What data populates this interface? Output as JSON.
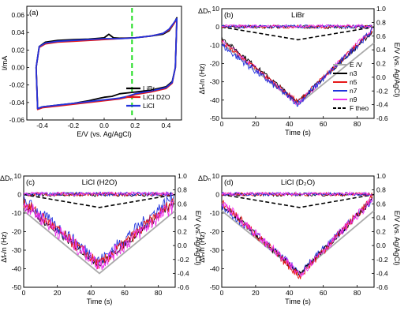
{
  "chart_data": [
    {
      "type": "line",
      "panel_label": "(a)",
      "title": "",
      "xlabel": "E/V (vs. Ag/AgCl)",
      "ylabel": "I/mA",
      "xlim": [
        -0.5,
        0.5
      ],
      "ylim": [
        -0.06,
        0.07
      ],
      "xticks": [
        "-0.4",
        "-0.2",
        "0.0",
        "0.2",
        "0.4"
      ],
      "yticks": [
        "-0.06",
        "-0.04",
        "-0.02",
        "0.00",
        "0.02",
        "0.04",
        "0.06"
      ],
      "vline": {
        "x": 0.18,
        "color": "#22dd22"
      },
      "legend_position": "bottom-right",
      "series": [
        {
          "name": "LiBr",
          "color": "#000000",
          "upper": {
            "x": [
              -0.44,
              -0.42,
              -0.38,
              -0.3,
              -0.2,
              -0.1,
              0.0,
              0.03,
              0.06,
              0.1,
              0.2,
              0.3,
              0.38,
              0.42,
              0.45,
              0.47
            ],
            "y": [
              0.0,
              0.024,
              0.029,
              0.031,
              0.032,
              0.0325,
              0.034,
              0.038,
              0.034,
              0.0335,
              0.034,
              0.036,
              0.038,
              0.042,
              0.05,
              0.057
            ]
          },
          "lower": {
            "x": [
              0.47,
              0.46,
              0.44,
              0.4,
              0.3,
              0.2,
              0.1,
              0.05,
              0.0,
              -0.1,
              -0.2,
              -0.3,
              -0.4,
              -0.43,
              -0.44
            ],
            "y": [
              0.057,
              0.0,
              -0.016,
              -0.022,
              -0.026,
              -0.028,
              -0.03,
              -0.033,
              -0.034,
              -0.038,
              -0.041,
              -0.043,
              -0.045,
              -0.047,
              0.0
            ]
          }
        },
        {
          "name": "LiCl D2O",
          "color": "#e61919",
          "upper": {
            "x": [
              -0.44,
              -0.42,
              -0.38,
              -0.3,
              -0.2,
              -0.1,
              0.0,
              0.1,
              0.2,
              0.3,
              0.38,
              0.42,
              0.45,
              0.47
            ],
            "y": [
              0.0,
              0.023,
              0.027,
              0.029,
              0.03,
              0.031,
              0.032,
              0.033,
              0.034,
              0.036,
              0.039,
              0.043,
              0.05,
              0.055
            ]
          },
          "lower": {
            "x": [
              0.47,
              0.46,
              0.44,
              0.4,
              0.3,
              0.2,
              0.15,
              0.1,
              0.0,
              -0.1,
              -0.2,
              -0.3,
              -0.4,
              -0.43,
              -0.44
            ],
            "y": [
              0.055,
              0.0,
              -0.018,
              -0.024,
              -0.028,
              -0.031,
              -0.034,
              -0.036,
              -0.038,
              -0.04,
              -0.042,
              -0.044,
              -0.046,
              -0.048,
              0.0
            ]
          }
        },
        {
          "name": "LiCl",
          "color": "#2233dd",
          "upper": {
            "x": [
              -0.44,
              -0.42,
              -0.38,
              -0.3,
              -0.2,
              -0.1,
              0.0,
              0.1,
              0.2,
              0.3,
              0.38,
              0.42,
              0.45,
              0.47
            ],
            "y": [
              0.0,
              0.024,
              0.028,
              0.03,
              0.031,
              0.032,
              0.033,
              0.033,
              0.034,
              0.036,
              0.039,
              0.044,
              0.051,
              0.056
            ]
          },
          "lower": {
            "x": [
              0.47,
              0.46,
              0.44,
              0.4,
              0.3,
              0.2,
              0.15,
              0.1,
              0.0,
              -0.1,
              -0.2,
              -0.3,
              -0.4,
              -0.43,
              -0.44
            ],
            "y": [
              0.056,
              0.0,
              -0.017,
              -0.023,
              -0.027,
              -0.03,
              -0.033,
              -0.035,
              -0.037,
              -0.039,
              -0.041,
              -0.043,
              -0.045,
              -0.047,
              0.0
            ]
          }
        }
      ]
    },
    {
      "type": "line",
      "panel_label": "(b)",
      "title": "LiBr",
      "xlabel": "Time (s)",
      "ylabel": "Δfₙ/n (Hz)",
      "ylabel_top": "ΔDₙ",
      "ylabel_right": "E/V (vs. Ag/AgCl)",
      "xlim": [
        0,
        90
      ],
      "ylim": [
        -50,
        10
      ],
      "y2lim": [
        -0.6,
        1.0
      ],
      "xticks": [
        "0",
        "20",
        "40",
        "60",
        "80"
      ],
      "yticks": [
        "-50",
        "-40",
        "-30",
        "-20",
        "-10",
        "0",
        "10"
      ],
      "y2ticks": [
        "-0.6",
        "-0.4",
        "-0.2",
        "0.0",
        "0.2",
        "0.4",
        "0.6",
        "0.8",
        "1.0"
      ],
      "legend_position": "bottom-right",
      "legend": [
        {
          "name": "E /V",
          "color": "#aaaaaa"
        },
        {
          "name": "n3",
          "color": "#000000"
        },
        {
          "name": "n5",
          "color": "#e61919"
        },
        {
          "name": "n7",
          "color": "#2233dd"
        },
        {
          "name": "n9",
          "color": "#ee33ee"
        },
        {
          "name": "F theo",
          "color": "#000000"
        }
      ],
      "min_time": 45,
      "min_freq": -42,
      "minima": {
        "n3": -41,
        "n5": -41,
        "n7": -42,
        "n9": -42
      }
    },
    {
      "type": "line",
      "panel_label": "(c)",
      "title": "LiCl (H2O)",
      "xlabel": "Time (s)",
      "ylabel": "Δfₙ/n (Hz)",
      "ylabel_top": "ΔDₙ",
      "ylabel_right": "E/V (vs. Ag/AgCl)",
      "xlim": [
        0,
        90
      ],
      "ylim": [
        -50,
        10
      ],
      "y2lim": [
        -0.6,
        1.0
      ],
      "xticks": [
        "0",
        "20",
        "40",
        "60",
        "80"
      ],
      "yticks": [
        "-50",
        "-40",
        "-30",
        "-20",
        "-10",
        "0",
        "10"
      ],
      "y2ticks": [
        "-0.6",
        "-0.4",
        "-0.2",
        "0.0",
        "0.2",
        "0.4",
        "0.6",
        "0.8",
        "1.0"
      ],
      "min_time": 45,
      "minima": {
        "n3": -38,
        "n5": -38,
        "n7": -36,
        "n9": -38
      }
    },
    {
      "type": "line",
      "panel_label": "(d)",
      "title": "LiCl (D₂O)",
      "xlabel": "Time (s)",
      "ylabel": "Δfₙ/n (Hz)",
      "ylabel_top": "ΔDₙ",
      "ylabel_right": "E/V (vs. Ag/AgCl)",
      "xlim": [
        0,
        90
      ],
      "ylim": [
        -50,
        10
      ],
      "y2lim": [
        -0.6,
        1.0
      ],
      "xticks": [
        "0",
        "20",
        "40",
        "60",
        "80"
      ],
      "yticks": [
        "-50",
        "-40",
        "-30",
        "-20",
        "-10",
        "0",
        "10"
      ],
      "y2ticks": [
        "-0.6",
        "-0.4",
        "-0.2",
        "0.0",
        "0.2",
        "0.4",
        "0.6",
        "0.8",
        "1.0"
      ],
      "min_time": 46,
      "minima": {
        "n3": -43,
        "n5": -44,
        "n7": -42,
        "n9": -43
      }
    }
  ]
}
